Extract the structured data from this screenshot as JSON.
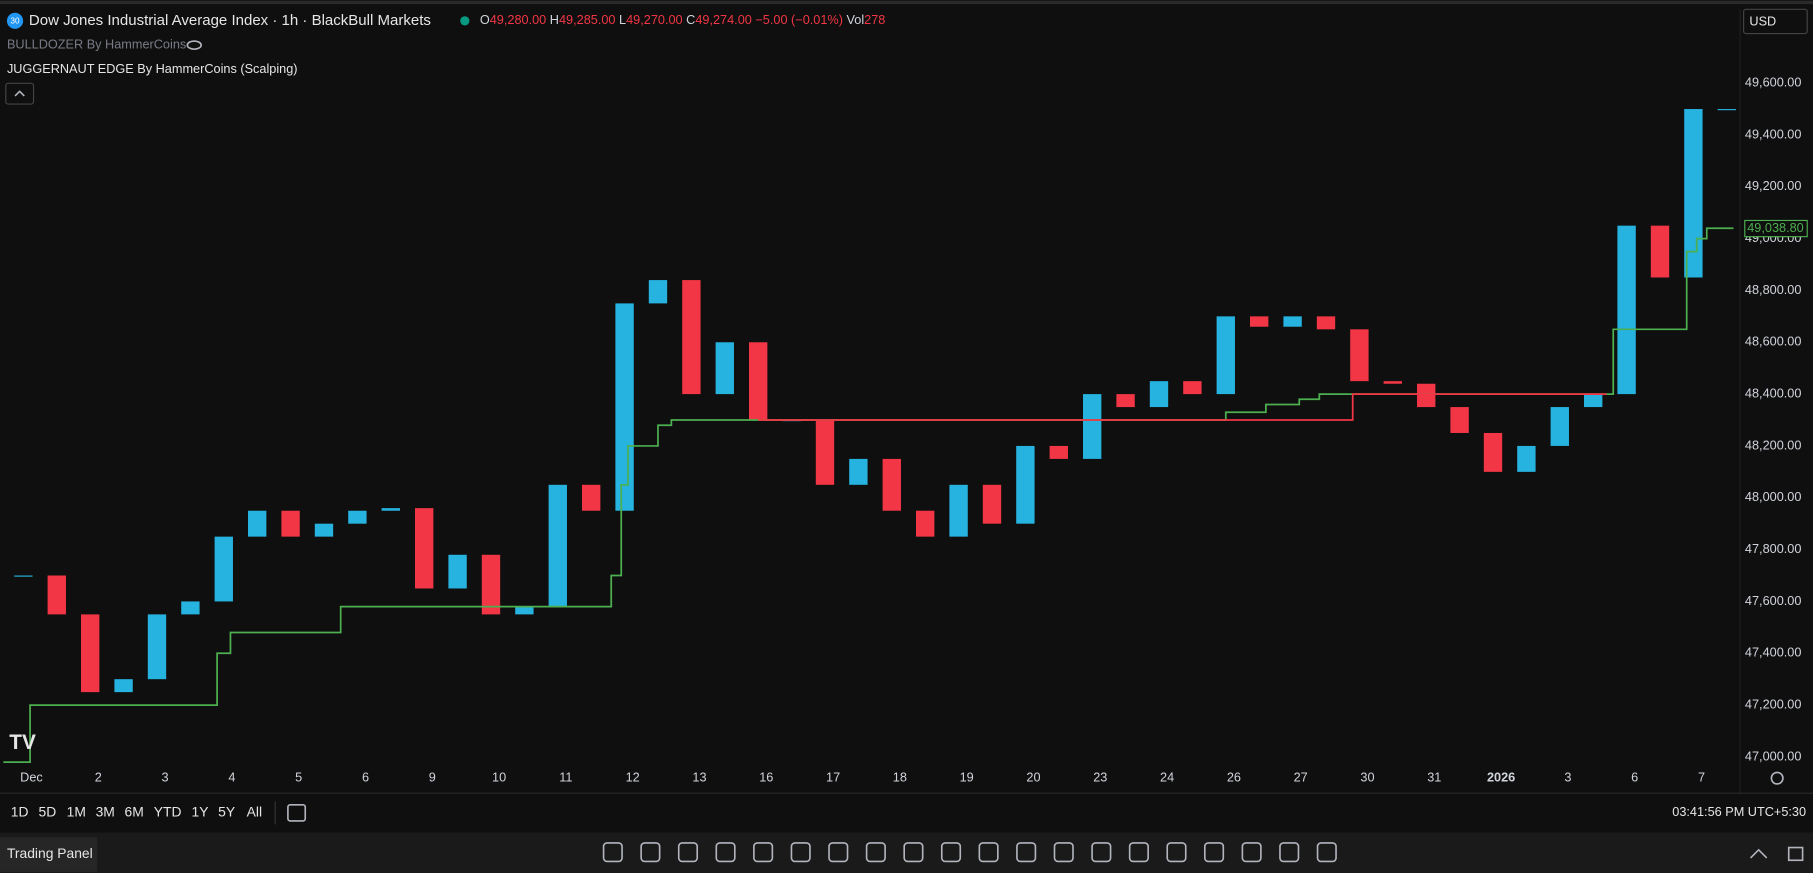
{
  "header": {
    "badge": "30",
    "title": "Dow Jones Industrial Average Index · 1h · BlackBull Markets",
    "ohlc": [
      {
        "key": "O",
        "value": "49,280.00"
      },
      {
        "key": "H",
        "value": "49,285.00"
      },
      {
        "key": "L",
        "value": "49,270.00"
      },
      {
        "key": "C",
        "value": "49,274.00 −5.00 (−0.01%)"
      },
      {
        "key": "Vol",
        "value": "278"
      }
    ],
    "currency": "USD",
    "indicators": [
      "BULLDOZER By HammerCoins",
      "JUGGERNAUT EDGE By HammerCoins (Scalping)"
    ]
  },
  "footer": {
    "ranges": [
      "1D",
      "5D",
      "1M",
      "3M",
      "6M",
      "YTD",
      "1Y",
      "5Y",
      "All"
    ],
    "time": "03:41:56 PM UTC+5:30",
    "panel": "Trading Panel"
  },
  "chart_data": {
    "type": "candlestick",
    "xlim": [
      -0.35,
      25.7
    ],
    "ylim": [
      46860,
      49885
    ],
    "grid": false,
    "xticks": [
      {
        "value": 0,
        "label": "Dec"
      },
      {
        "value": 1,
        "label": "2"
      },
      {
        "value": 2,
        "label": "3"
      },
      {
        "value": 3,
        "label": "4"
      },
      {
        "value": 4,
        "label": "5"
      },
      {
        "value": 5,
        "label": "6"
      },
      {
        "value": 6,
        "label": "9"
      },
      {
        "value": 7,
        "label": "10"
      },
      {
        "value": 8,
        "label": "11"
      },
      {
        "value": 9,
        "label": "12"
      },
      {
        "value": 10,
        "label": "13"
      },
      {
        "value": 11,
        "label": "16"
      },
      {
        "value": 12,
        "label": "17"
      },
      {
        "value": 13,
        "label": "18"
      },
      {
        "value": 14,
        "label": "19"
      },
      {
        "value": 15,
        "label": "20"
      },
      {
        "value": 16,
        "label": "23"
      },
      {
        "value": 17,
        "label": "24"
      },
      {
        "value": 18,
        "label": "26"
      },
      {
        "value": 19,
        "label": "27"
      },
      {
        "value": 20,
        "label": "30"
      },
      {
        "value": 21,
        "label": "31"
      },
      {
        "value": 22,
        "label": "2026"
      },
      {
        "value": 23,
        "label": "3"
      },
      {
        "value": 24,
        "label": "6"
      },
      {
        "value": 25,
        "label": "7"
      }
    ],
    "yticks": [
      {
        "value": 47000,
        "label": "47,000.00"
      },
      {
        "value": 47200,
        "label": "47,200.00"
      },
      {
        "value": 47400,
        "label": "47,400.00"
      },
      {
        "value": 47600,
        "label": "47,600.00"
      },
      {
        "value": 47800,
        "label": "47,800.00"
      },
      {
        "value": 48000,
        "label": "48,000.00"
      },
      {
        "value": 48200,
        "label": "48,200.00"
      },
      {
        "value": 48400,
        "label": "48,400.00"
      },
      {
        "value": 48600,
        "label": "48,600.00"
      },
      {
        "value": 48800,
        "label": "48,800.00"
      },
      {
        "value": 49000,
        "label": "49,000.00"
      },
      {
        "value": 49200,
        "label": "49,200.00"
      },
      {
        "value": 49400,
        "label": "49,400.00"
      },
      {
        "value": 49600,
        "label": "49,600.00"
      }
    ],
    "series": [
      {
        "color": "#26b3e0",
        "down_color": "#f23645",
        "x": [
          0,
          0.5,
          1,
          1.5,
          2,
          2.5,
          3,
          3.5,
          4,
          4.5,
          5,
          5.5,
          6,
          6.5,
          7,
          7.5,
          8,
          8.5,
          9,
          9.5,
          10,
          10.5,
          11,
          11.5,
          12,
          12.5,
          13,
          13.5,
          14,
          14.5,
          15,
          15.5,
          16,
          16.5,
          17,
          17.5,
          18,
          18.5,
          19,
          19.5,
          20,
          20.5,
          21,
          21.5,
          22,
          22.5,
          23,
          23.5,
          24,
          24.5,
          25,
          25.5
        ],
        "values": [
          47700,
          47550,
          47250,
          47300,
          47550,
          47600,
          47850,
          47950,
          47850,
          47900,
          47950,
          47960,
          47650,
          47780,
          47550,
          47580,
          48050,
          47950,
          48750,
          48840,
          48400,
          48600,
          48300,
          48300,
          48050,
          48150,
          47950,
          47850,
          48050,
          47900,
          48200,
          48150,
          48400,
          48350,
          48450,
          48400,
          48700,
          48660,
          48700,
          48650,
          48450,
          48440,
          48350,
          48250,
          48100,
          48200,
          48350,
          48400,
          49050,
          48850,
          49500,
          49500
        ]
      },
      {
        "color": "#4caf50",
        "x": [
          -0.3,
          0.1,
          2.9,
          3.1,
          4.75,
          8.8,
          8.95,
          9.05,
          9.5,
          9.7,
          18.0,
          18.6,
          19.1,
          19.4,
          23.8,
          24.9,
          25.05,
          25.2,
          25.6
        ],
        "values": [
          46980,
          47200,
          47400,
          47480,
          47580,
          47700,
          48050,
          48200,
          48280,
          48300,
          48330,
          48360,
          48380,
          48400,
          48650,
          48950,
          49000,
          49040,
          49040
        ]
      },
      {
        "color": "#f23645",
        "x": [
          11,
          19.9,
          23.7
        ],
        "values": [
          48300,
          48400,
          48400
        ]
      }
    ],
    "last_value": {
      "value": 49038.8,
      "label": "49,038.80"
    }
  }
}
